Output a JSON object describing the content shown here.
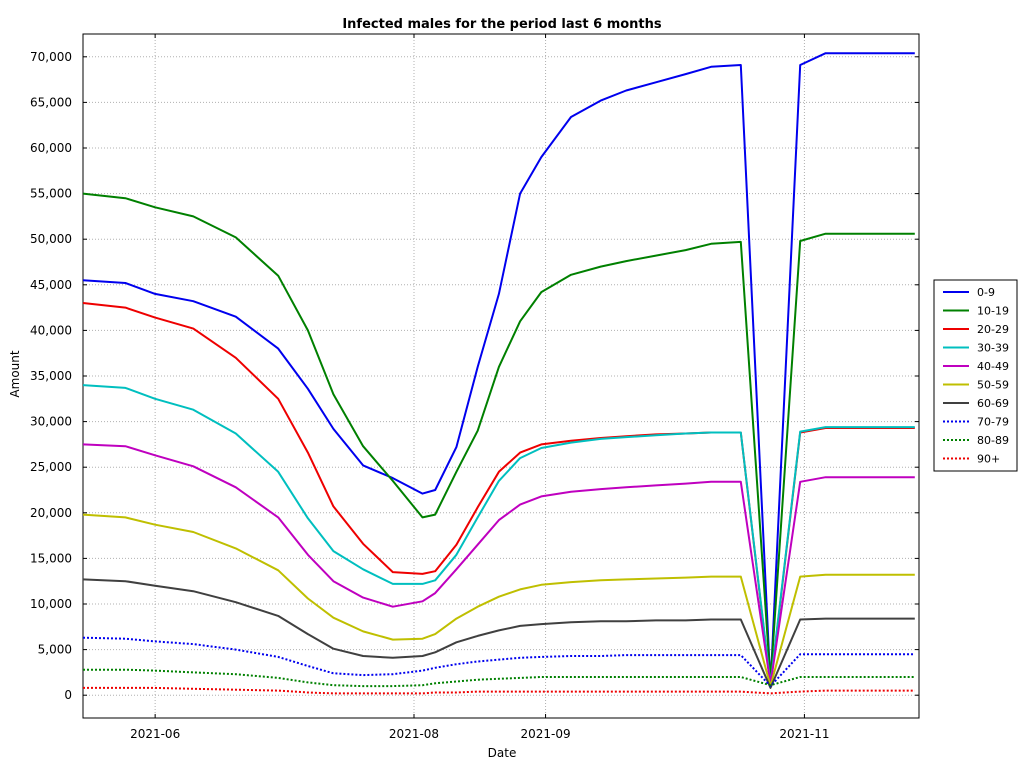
{
  "chart_data": {
    "type": "line",
    "title": "Infected males for the period last 6 months",
    "xlabel": "Date",
    "ylabel": "Amount",
    "x_range": [
      "2021-05-15",
      "2021-11-28"
    ],
    "ylim": [
      -2500,
      72500
    ],
    "grid": true,
    "grid_style": "dotted",
    "legend_position": "right",
    "x_ticks": [
      "2021-06",
      "2021-08",
      "2021-09",
      "2021-11"
    ],
    "y_ticks": [
      "0",
      "5,000",
      "10,000",
      "15,000",
      "20,000",
      "25,000",
      "30,000",
      "35,000",
      "40,000",
      "45,000",
      "50,000",
      "55,000",
      "60,000",
      "65,000",
      "70,000"
    ],
    "y_tick_values": [
      0,
      5000,
      10000,
      15000,
      20000,
      25000,
      30000,
      35000,
      40000,
      45000,
      50000,
      55000,
      60000,
      65000,
      70000
    ],
    "series": [
      {
        "name": "0-9",
        "color": "#0000ee",
        "dash": "solid",
        "x": [
          "2021-05-15",
          "2021-05-25",
          "2021-06-01",
          "2021-06-10",
          "2021-06-20",
          "2021-06-30",
          "2021-07-07",
          "2021-07-13",
          "2021-07-20",
          "2021-07-27",
          "2021-08-03",
          "2021-08-06",
          "2021-08-11",
          "2021-08-16",
          "2021-08-21",
          "2021-08-26",
          "2021-08-31",
          "2021-09-07",
          "2021-09-14",
          "2021-09-20",
          "2021-09-27",
          "2021-10-04",
          "2021-10-10",
          "2021-10-17",
          "2021-10-24",
          "2021-10-31",
          "2021-11-06",
          "2021-11-07",
          "2021-11-08",
          "2021-11-14",
          "2021-11-21",
          "2021-11-27"
        ],
        "y": [
          45500,
          45200,
          44000,
          43200,
          41500,
          38000,
          33600,
          29200,
          25200,
          23800,
          22100,
          22500,
          27200,
          36000,
          44000,
          55000,
          59000,
          63400,
          65200,
          66300,
          67200,
          68100,
          68900,
          69100,
          1000,
          69100,
          70400,
          70400,
          70400,
          70400,
          70400,
          70400
        ]
      },
      {
        "name": "10-19",
        "color": "#008000",
        "dash": "solid",
        "x": [
          "2021-05-15",
          "2021-05-25",
          "2021-06-01",
          "2021-06-10",
          "2021-06-20",
          "2021-06-30",
          "2021-07-07",
          "2021-07-13",
          "2021-07-20",
          "2021-07-27",
          "2021-08-03",
          "2021-08-06",
          "2021-08-11",
          "2021-08-16",
          "2021-08-21",
          "2021-08-26",
          "2021-08-31",
          "2021-09-07",
          "2021-09-14",
          "2021-09-20",
          "2021-09-27",
          "2021-10-04",
          "2021-10-10",
          "2021-10-17",
          "2021-10-24",
          "2021-10-31",
          "2021-11-06",
          "2021-11-07",
          "2021-11-08",
          "2021-11-14",
          "2021-11-21",
          "2021-11-27"
        ],
        "y": [
          55000,
          54500,
          53500,
          52500,
          50200,
          46000,
          40000,
          33000,
          27300,
          23500,
          19500,
          19800,
          24500,
          29000,
          36000,
          41000,
          44200,
          46100,
          47000,
          47600,
          48200,
          48800,
          49500,
          49700,
          1500,
          49800,
          50600,
          50600,
          50600,
          50600,
          50600,
          50600
        ]
      },
      {
        "name": "20-29",
        "color": "#ee0000",
        "dash": "solid",
        "x": [
          "2021-05-15",
          "2021-05-25",
          "2021-06-01",
          "2021-06-10",
          "2021-06-20",
          "2021-06-30",
          "2021-07-07",
          "2021-07-13",
          "2021-07-20",
          "2021-07-27",
          "2021-08-03",
          "2021-08-06",
          "2021-08-11",
          "2021-08-16",
          "2021-08-21",
          "2021-08-26",
          "2021-08-31",
          "2021-09-07",
          "2021-09-14",
          "2021-09-20",
          "2021-09-27",
          "2021-10-04",
          "2021-10-10",
          "2021-10-17",
          "2021-10-24",
          "2021-10-31",
          "2021-11-06",
          "2021-11-07",
          "2021-11-08",
          "2021-11-14",
          "2021-11-21",
          "2021-11-27"
        ],
        "y": [
          43000,
          42500,
          41400,
          40200,
          37000,
          32500,
          26600,
          20700,
          16600,
          13500,
          13300,
          13600,
          16500,
          20600,
          24500,
          26600,
          27500,
          27900,
          28200,
          28400,
          28600,
          28700,
          28800,
          28800,
          1000,
          28800,
          29300,
          29300,
          29300,
          29300,
          29300,
          29300
        ]
      },
      {
        "name": "30-39",
        "color": "#00bfbf",
        "dash": "solid",
        "x": [
          "2021-05-15",
          "2021-05-25",
          "2021-06-01",
          "2021-06-10",
          "2021-06-20",
          "2021-06-30",
          "2021-07-07",
          "2021-07-13",
          "2021-07-20",
          "2021-07-27",
          "2021-08-03",
          "2021-08-06",
          "2021-08-11",
          "2021-08-16",
          "2021-08-21",
          "2021-08-26",
          "2021-08-31",
          "2021-09-07",
          "2021-09-14",
          "2021-09-20",
          "2021-09-27",
          "2021-10-04",
          "2021-10-10",
          "2021-10-17",
          "2021-10-24",
          "2021-10-31",
          "2021-11-06",
          "2021-11-07",
          "2021-11-08",
          "2021-11-14",
          "2021-11-21",
          "2021-11-27"
        ],
        "y": [
          34000,
          33700,
          32500,
          31300,
          28700,
          24500,
          19400,
          15800,
          13800,
          12200,
          12200,
          12600,
          15400,
          19500,
          23500,
          26000,
          27100,
          27700,
          28100,
          28300,
          28500,
          28700,
          28800,
          28800,
          1200,
          28900,
          29400,
          29400,
          29400,
          29400,
          29400,
          29400
        ]
      },
      {
        "name": "40-49",
        "color": "#bf00bf",
        "dash": "solid",
        "x": [
          "2021-05-15",
          "2021-05-25",
          "2021-06-01",
          "2021-06-10",
          "2021-06-20",
          "2021-06-30",
          "2021-07-07",
          "2021-07-13",
          "2021-07-20",
          "2021-07-27",
          "2021-08-03",
          "2021-08-06",
          "2021-08-11",
          "2021-08-16",
          "2021-08-21",
          "2021-08-26",
          "2021-08-31",
          "2021-09-07",
          "2021-09-14",
          "2021-09-20",
          "2021-09-27",
          "2021-10-04",
          "2021-10-10",
          "2021-10-17",
          "2021-10-24",
          "2021-10-31",
          "2021-11-06",
          "2021-11-07",
          "2021-11-08",
          "2021-11-14",
          "2021-11-21",
          "2021-11-27"
        ],
        "y": [
          27500,
          27300,
          26300,
          25100,
          22800,
          19500,
          15400,
          12500,
          10700,
          9700,
          10300,
          11200,
          13800,
          16500,
          19200,
          20900,
          21800,
          22300,
          22600,
          22800,
          23000,
          23200,
          23400,
          23400,
          1200,
          23400,
          23900,
          23900,
          23900,
          23900,
          23900,
          23900
        ]
      },
      {
        "name": "50-59",
        "color": "#bfbf00",
        "dash": "solid",
        "x": [
          "2021-05-15",
          "2021-05-25",
          "2021-06-01",
          "2021-06-10",
          "2021-06-20",
          "2021-06-30",
          "2021-07-07",
          "2021-07-13",
          "2021-07-20",
          "2021-07-27",
          "2021-08-03",
          "2021-08-06",
          "2021-08-11",
          "2021-08-16",
          "2021-08-21",
          "2021-08-26",
          "2021-08-31",
          "2021-09-07",
          "2021-09-14",
          "2021-09-20",
          "2021-09-27",
          "2021-10-04",
          "2021-10-10",
          "2021-10-17",
          "2021-10-24",
          "2021-10-31",
          "2021-11-06",
          "2021-11-07",
          "2021-11-08",
          "2021-11-14",
          "2021-11-21",
          "2021-11-27"
        ],
        "y": [
          19800,
          19500,
          18700,
          17900,
          16100,
          13700,
          10600,
          8500,
          7000,
          6100,
          6200,
          6700,
          8400,
          9700,
          10800,
          11600,
          12100,
          12400,
          12600,
          12700,
          12800,
          12900,
          13000,
          13000,
          1000,
          13000,
          13200,
          13200,
          13200,
          13200,
          13200,
          13200
        ]
      },
      {
        "name": "60-69",
        "color": "#404040",
        "dash": "solid",
        "x": [
          "2021-05-15",
          "2021-05-25",
          "2021-06-01",
          "2021-06-10",
          "2021-06-20",
          "2021-06-30",
          "2021-07-07",
          "2021-07-13",
          "2021-07-20",
          "2021-07-27",
          "2021-08-03",
          "2021-08-06",
          "2021-08-11",
          "2021-08-16",
          "2021-08-21",
          "2021-08-26",
          "2021-08-31",
          "2021-09-07",
          "2021-09-14",
          "2021-09-20",
          "2021-09-27",
          "2021-10-04",
          "2021-10-10",
          "2021-10-17",
          "2021-10-24",
          "2021-10-31",
          "2021-11-06",
          "2021-11-07",
          "2021-11-08",
          "2021-11-14",
          "2021-11-21",
          "2021-11-27"
        ],
        "y": [
          12700,
          12500,
          12000,
          11400,
          10200,
          8700,
          6700,
          5100,
          4300,
          4100,
          4300,
          4700,
          5800,
          6500,
          7100,
          7600,
          7800,
          8000,
          8100,
          8100,
          8200,
          8200,
          8300,
          8300,
          800,
          8300,
          8400,
          8400,
          8400,
          8400,
          8400,
          8400
        ]
      },
      {
        "name": "70-79",
        "color": "#0000ee",
        "dash": "dotted",
        "x": [
          "2021-05-15",
          "2021-05-25",
          "2021-06-01",
          "2021-06-10",
          "2021-06-20",
          "2021-06-30",
          "2021-07-07",
          "2021-07-13",
          "2021-07-20",
          "2021-07-27",
          "2021-08-03",
          "2021-08-06",
          "2021-08-11",
          "2021-08-16",
          "2021-08-21",
          "2021-08-26",
          "2021-08-31",
          "2021-09-07",
          "2021-09-14",
          "2021-09-20",
          "2021-09-27",
          "2021-10-04",
          "2021-10-10",
          "2021-10-17",
          "2021-10-24",
          "2021-10-31",
          "2021-11-06",
          "2021-11-07",
          "2021-11-08",
          "2021-11-14",
          "2021-11-21",
          "2021-11-27"
        ],
        "y": [
          6300,
          6200,
          5900,
          5600,
          5000,
          4200,
          3200,
          2400,
          2200,
          2300,
          2700,
          3000,
          3400,
          3700,
          3900,
          4100,
          4200,
          4300,
          4300,
          4400,
          4400,
          4400,
          4400,
          4400,
          1000,
          4500,
          4500,
          4500,
          4500,
          4500,
          4500,
          4500
        ]
      },
      {
        "name": "80-89",
        "color": "#008000",
        "dash": "dotted",
        "x": [
          "2021-05-15",
          "2021-05-25",
          "2021-06-01",
          "2021-06-10",
          "2021-06-20",
          "2021-06-30",
          "2021-07-07",
          "2021-07-13",
          "2021-07-20",
          "2021-07-27",
          "2021-08-03",
          "2021-08-06",
          "2021-08-11",
          "2021-08-16",
          "2021-08-21",
          "2021-08-26",
          "2021-08-31",
          "2021-09-07",
          "2021-09-14",
          "2021-09-20",
          "2021-09-27",
          "2021-10-04",
          "2021-10-10",
          "2021-10-17",
          "2021-10-24",
          "2021-10-31",
          "2021-11-06",
          "2021-11-07",
          "2021-11-08",
          "2021-11-14",
          "2021-11-21",
          "2021-11-27"
        ],
        "y": [
          2800,
          2800,
          2700,
          2500,
          2300,
          1900,
          1400,
          1100,
          1000,
          1000,
          1100,
          1300,
          1500,
          1700,
          1800,
          1900,
          2000,
          2000,
          2000,
          2000,
          2000,
          2000,
          2000,
          2000,
          1100,
          2000,
          2000,
          2000,
          2000,
          2000,
          2000,
          2000
        ]
      },
      {
        "name": "90+",
        "color": "#ee0000",
        "dash": "dotted",
        "x": [
          "2021-05-15",
          "2021-05-25",
          "2021-06-01",
          "2021-06-10",
          "2021-06-20",
          "2021-06-30",
          "2021-07-07",
          "2021-07-13",
          "2021-07-20",
          "2021-07-27",
          "2021-08-03",
          "2021-08-06",
          "2021-08-11",
          "2021-08-16",
          "2021-08-21",
          "2021-08-26",
          "2021-08-31",
          "2021-09-07",
          "2021-09-14",
          "2021-09-20",
          "2021-09-27",
          "2021-10-04",
          "2021-10-10",
          "2021-10-17",
          "2021-10-24",
          "2021-10-31",
          "2021-11-06",
          "2021-11-07",
          "2021-11-08",
          "2021-11-14",
          "2021-11-21",
          "2021-11-27"
        ],
        "y": [
          800,
          800,
          800,
          700,
          600,
          500,
          300,
          200,
          200,
          200,
          200,
          300,
          300,
          400,
          400,
          400,
          400,
          400,
          400,
          400,
          400,
          400,
          400,
          400,
          200,
          400,
          500,
          500,
          500,
          500,
          500,
          500
        ]
      }
    ]
  }
}
